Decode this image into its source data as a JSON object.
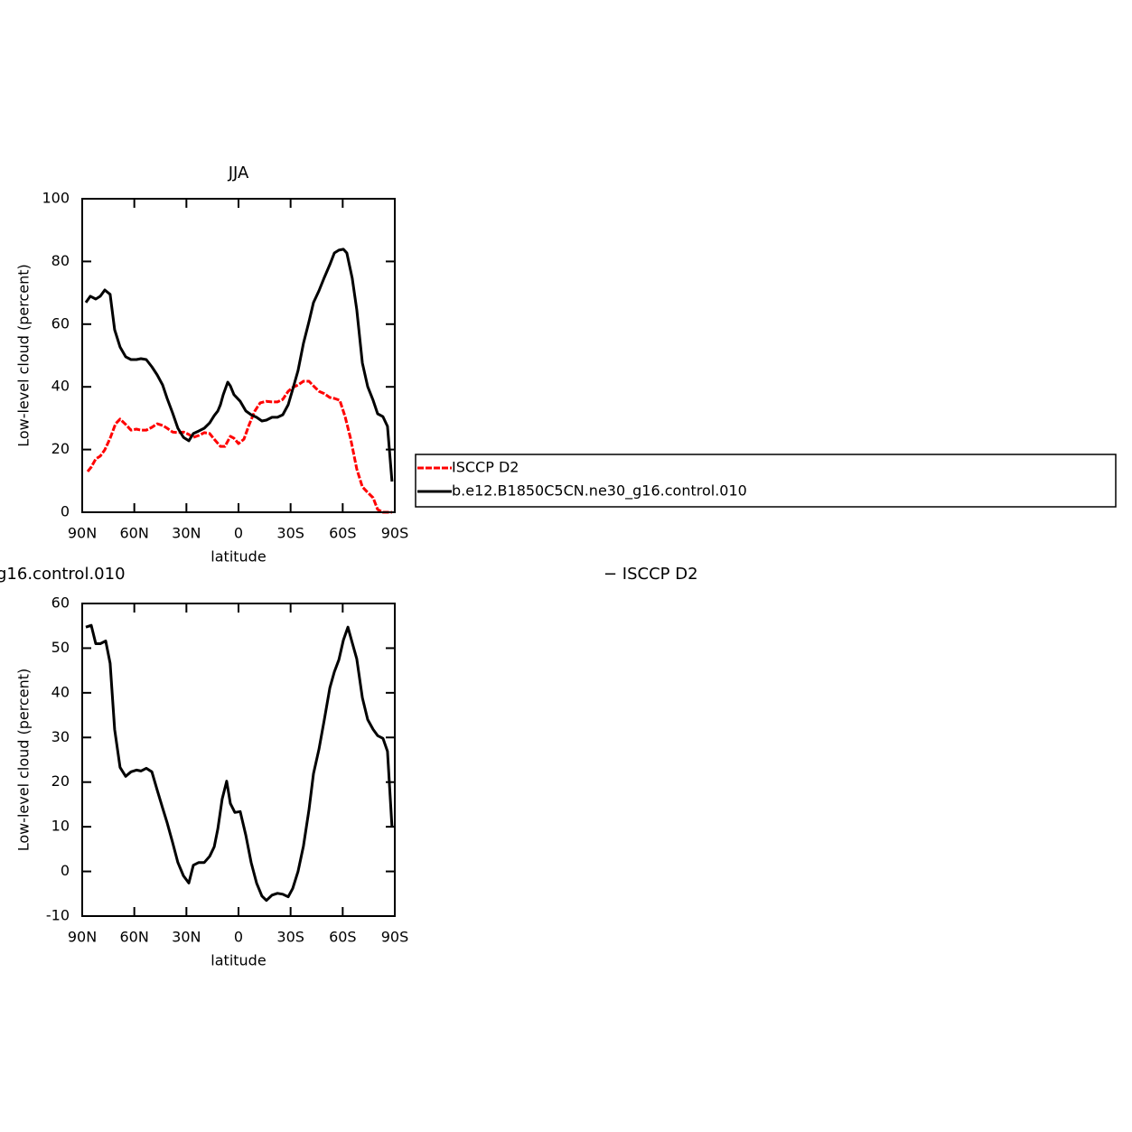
{
  "chart_data": [
    {
      "type": "line",
      "title": "JJA",
      "xlabel": "latitude",
      "ylabel": "Low-level cloud (percent)",
      "xlim": [
        90,
        -90
      ],
      "xticks": [
        {
          "value": 90,
          "label": "90N"
        },
        {
          "value": 60,
          "label": "60N"
        },
        {
          "value": 30,
          "label": "30N"
        },
        0,
        {
          "value": -30,
          "label": "30S"
        },
        {
          "value": -60,
          "label": "60S"
        },
        {
          "value": -90,
          "label": "90S"
        }
      ],
      "ylim": [
        0,
        100
      ],
      "yticks": [
        0,
        20,
        40,
        60,
        80,
        100
      ],
      "legend": "outside-right",
      "series": [
        {
          "name": "ISCCP D2",
          "color": "#ff0000",
          "dashed": true,
          "x": [
            86.9,
            84.8,
            82.2,
            79.6,
            77.0,
            73.9,
            70.8,
            68.2,
            65.0,
            61.9,
            58.8,
            56.2,
            53.1,
            49.9,
            46.8,
            43.7,
            41.1,
            38.0,
            34.9,
            31.7,
            28.6,
            26.0,
            22.9,
            19.7,
            16.6,
            14.0,
            10.4,
            7.8,
            4.7,
            2.6,
            0.0,
            -3.1,
            -6.2,
            -9.4,
            -12.5,
            -16.1,
            -19.3,
            -22.4,
            -25.5,
            -28.6,
            -31.2,
            -34.3,
            -37.4,
            -40.6,
            -43.2,
            -46.3,
            -49.4,
            -52.6,
            -55.2,
            -58.3,
            -61.4,
            -64.5,
            -68.1,
            -71.3,
            -74.4,
            -77.5,
            -80.1,
            -83.2,
            -88.4
          ],
          "values": [
            13.0,
            14.4,
            17.0,
            17.9,
            19.9,
            23.6,
            28.2,
            29.7,
            28.0,
            26.2,
            26.5,
            26.2,
            26.2,
            27.1,
            28.2,
            27.7,
            26.8,
            25.6,
            25.4,
            25.6,
            24.8,
            23.9,
            24.5,
            25.4,
            25.1,
            23.3,
            21.0,
            21.0,
            24.2,
            23.6,
            21.9,
            23.3,
            28.0,
            32.3,
            34.9,
            35.4,
            35.2,
            35.2,
            36.0,
            38.6,
            39.8,
            40.6,
            41.8,
            41.8,
            40.3,
            38.6,
            37.8,
            36.6,
            36.3,
            35.7,
            30.5,
            23.6,
            13.8,
            8.1,
            6.3,
            4.6,
            0.9,
            0,
            0
          ]
        },
        {
          "name": "b.e12.B1850C5CN.ne30_g16.control.010",
          "color": "#000000",
          "dashed": false,
          "x": [
            87.9,
            85.3,
            82.2,
            79.6,
            77.0,
            73.9,
            71.3,
            68.2,
            65.0,
            61.9,
            58.8,
            56.2,
            53.1,
            49.9,
            46.8,
            43.7,
            41.1,
            38.0,
            34.9,
            31.7,
            28.6,
            26.0,
            22.9,
            19.7,
            16.6,
            14.0,
            11.9,
            10.4,
            8.8,
            6.2,
            4.7,
            2.6,
            -1.0,
            -4.2,
            -7.3,
            -10.4,
            -13.5,
            -16.1,
            -19.3,
            -22.4,
            -25.5,
            -28.6,
            -31.2,
            -34.3,
            -37.4,
            -40.6,
            -43.2,
            -46.3,
            -49.4,
            -52.6,
            -55.2,
            -57.8,
            -60.4,
            -62.4,
            -65.5,
            -68.1,
            -71.3,
            -74.4,
            -77.5,
            -80.1,
            -83.2,
            -85.8,
            -88.4
          ],
          "values": [
            66.9,
            68.9,
            68.0,
            68.9,
            70.9,
            69.5,
            58.2,
            52.7,
            49.6,
            48.7,
            48.7,
            49.0,
            48.7,
            46.4,
            43.8,
            40.6,
            36.3,
            31.7,
            26.8,
            23.9,
            22.8,
            25.1,
            25.9,
            26.8,
            28.5,
            30.8,
            32.3,
            34.3,
            37.5,
            41.5,
            40.3,
            37.5,
            35.4,
            32.3,
            31.1,
            30.3,
            29.1,
            29.4,
            30.3,
            30.3,
            31.1,
            34.3,
            39.2,
            45.2,
            53.9,
            60.8,
            66.9,
            70.6,
            74.9,
            79.0,
            82.7,
            83.6,
            83.9,
            82.7,
            74.6,
            64.6,
            47.6,
            40.1,
            35.7,
            31.4,
            30.5,
            27.4,
            9.8
          ]
        }
      ]
    },
    {
      "type": "line",
      "title": [
        "g16.control.010",
        "− ISCCP D2"
      ],
      "xlabel": "latitude",
      "ylabel": "Low-level cloud (percent)",
      "xlim": [
        90,
        -90
      ],
      "xticks": [
        {
          "value": 90,
          "label": "90N"
        },
        {
          "value": 60,
          "label": "60N"
        },
        {
          "value": 30,
          "label": "30N"
        },
        0,
        {
          "value": -30,
          "label": "30S"
        },
        {
          "value": -60,
          "label": "60S"
        },
        {
          "value": -90,
          "label": "90S"
        }
      ],
      "ylim": [
        -10,
        60
      ],
      "yticks": [
        -10,
        0,
        10,
        20,
        30,
        40,
        50,
        60
      ],
      "series": [
        {
          "color": "#000000",
          "dashed": false,
          "x": [
            87.9,
            84.8,
            82.2,
            79.6,
            76.5,
            73.9,
            71.3,
            68.2,
            65.0,
            61.9,
            58.8,
            56.2,
            53.1,
            49.9,
            46.8,
            43.7,
            41.1,
            38.0,
            34.9,
            31.7,
            28.6,
            26.0,
            22.9,
            19.7,
            16.6,
            14.0,
            11.9,
            9.4,
            6.8,
            4.7,
            2.1,
            -1.0,
            -4.2,
            -7.3,
            -10.4,
            -13.5,
            -16.1,
            -19.3,
            -22.4,
            -25.5,
            -28.6,
            -31.2,
            -34.3,
            -37.4,
            -40.6,
            -43.2,
            -46.3,
            -49.4,
            -52.6,
            -55.2,
            -57.8,
            -60.4,
            -63.0,
            -65.5,
            -68.1,
            -71.3,
            -74.4,
            -77.5,
            -80.1,
            -83.2,
            -85.8,
            -88.4
          ],
          "values": [
            54.7,
            55.1,
            51.0,
            51.0,
            51.6,
            46.6,
            31.8,
            23.3,
            21.3,
            22.3,
            22.7,
            22.5,
            23.1,
            22.3,
            18.2,
            14.2,
            10.9,
            6.5,
            2.0,
            -1.0,
            -2.6,
            1.4,
            2.0,
            2.0,
            3.4,
            5.5,
            9.5,
            16.2,
            20.2,
            15.2,
            13.2,
            13.4,
            8.1,
            2.0,
            -2.6,
            -5.5,
            -6.5,
            -5.3,
            -4.9,
            -5.1,
            -5.7,
            -3.8,
            0,
            5.7,
            13.8,
            21.9,
            27.3,
            34.0,
            41.1,
            44.7,
            47.4,
            51.8,
            54.7,
            51.2,
            47.6,
            38.9,
            34.0,
            31.8,
            30.4,
            29.8,
            26.9,
            9.9
          ]
        }
      ]
    }
  ]
}
